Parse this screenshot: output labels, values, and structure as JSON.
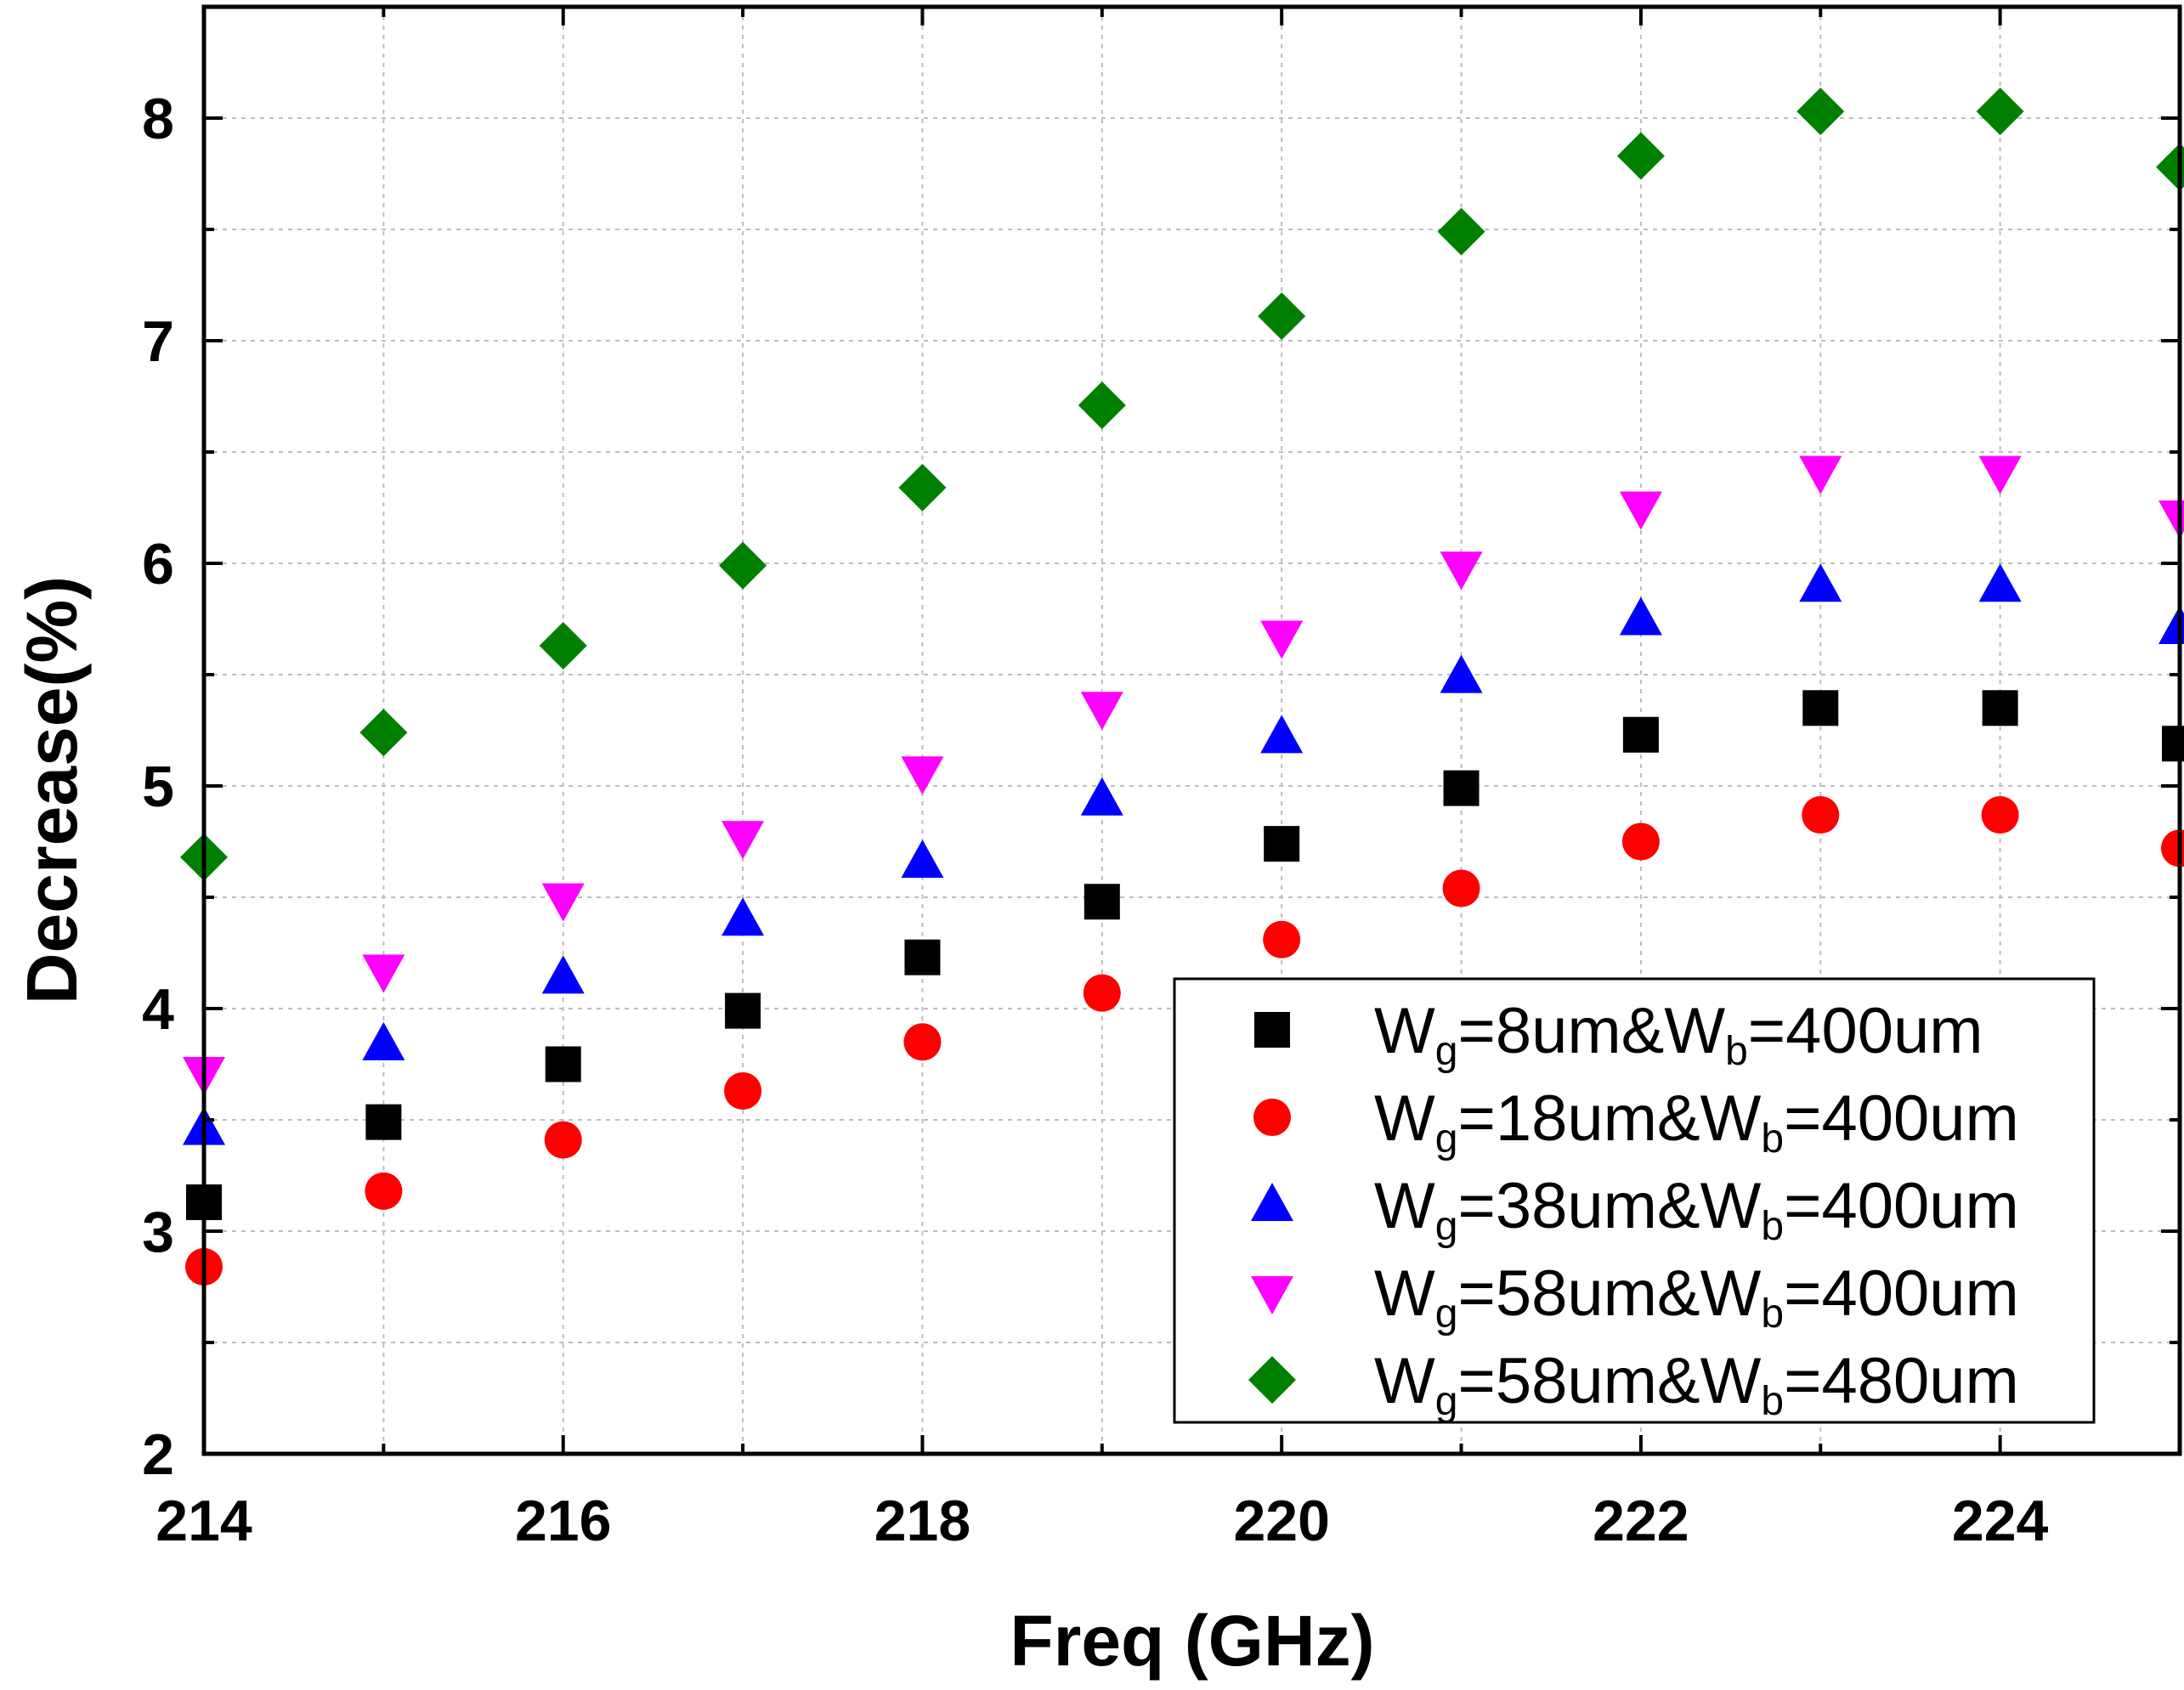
{
  "chart_data": {
    "type": "scatter",
    "xlabel": "Freq (GHz)",
    "ylabel": "Decrease(%)",
    "xlim": [
      214,
      225
    ],
    "ylim": [
      2,
      8.5
    ],
    "xticks": [
      214,
      216,
      218,
      220,
      222,
      224
    ],
    "yticks": [
      2,
      3,
      4,
      5,
      6,
      7,
      8
    ],
    "grid": true,
    "legend_position": "bottom-right",
    "x": [
      214,
      215,
      216,
      217,
      218,
      219,
      220,
      221,
      222,
      223,
      224,
      225
    ],
    "series": [
      {
        "name_parts": [
          "W",
          "g",
          "=8um&W",
          "b",
          "=400um"
        ],
        "marker": "square",
        "color": "#000000",
        "values": [
          3.13,
          3.49,
          3.75,
          3.99,
          4.23,
          4.48,
          4.74,
          4.99,
          5.23,
          5.35,
          5.35,
          5.19
        ]
      },
      {
        "name_parts": [
          "W",
          "g",
          "=18um&W",
          "b",
          "=400um"
        ],
        "marker": "circle",
        "color": "#ff0000",
        "values": [
          2.84,
          3.18,
          3.41,
          3.63,
          3.85,
          4.07,
          4.31,
          4.54,
          4.75,
          4.87,
          4.87,
          4.72
        ]
      },
      {
        "name_parts": [
          "W",
          "g",
          "=38um&W",
          "b",
          "=400um"
        ],
        "marker": "triangle-up",
        "color": "#0000ff",
        "values": [
          3.46,
          3.84,
          4.14,
          4.4,
          4.66,
          4.94,
          5.22,
          5.49,
          5.75,
          5.9,
          5.9,
          5.71
        ]
      },
      {
        "name_parts": [
          "W",
          "g",
          "=58um&W",
          "b",
          "=400um"
        ],
        "marker": "triangle-down",
        "color": "#ff00ff",
        "values": [
          3.71,
          4.17,
          4.49,
          4.77,
          5.06,
          5.35,
          5.67,
          5.98,
          6.25,
          6.41,
          6.41,
          6.21
        ]
      },
      {
        "name_parts": [
          "W",
          "g",
          "=58um&W",
          "b",
          "=480um"
        ],
        "marker": "diamond",
        "color": "#008000",
        "values": [
          4.68,
          5.24,
          5.63,
          5.99,
          6.34,
          6.71,
          7.11,
          7.49,
          7.83,
          8.03,
          8.03,
          7.78
        ]
      }
    ]
  }
}
